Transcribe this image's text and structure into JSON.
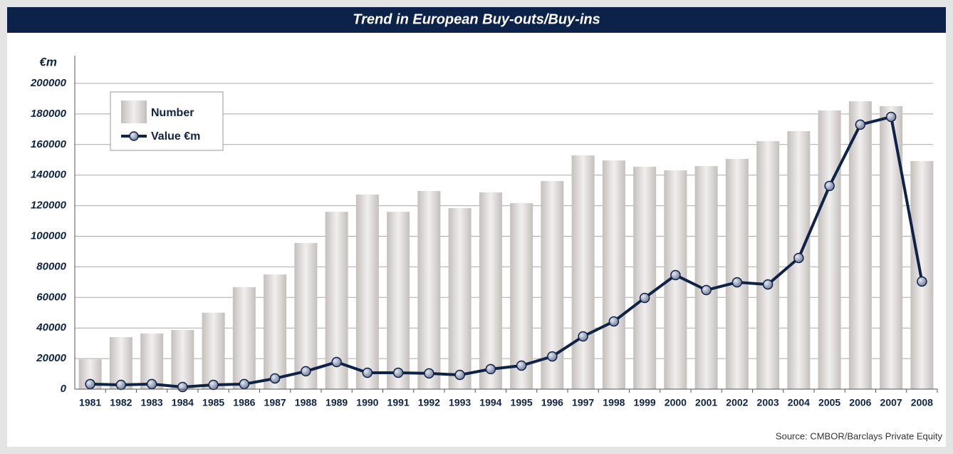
{
  "chart_data": {
    "type": "bar",
    "title": "Trend in European Buy-outs/Buy-ins",
    "y_label": "€m",
    "source": "Source: CMBOR/Barclays Private Equity",
    "categories": [
      "1981",
      "1982",
      "1983",
      "1984",
      "1985",
      "1986",
      "1987",
      "1988",
      "1989",
      "1990",
      "1991",
      "1992",
      "1993",
      "1994",
      "1995",
      "1996",
      "1997",
      "1998",
      "1999",
      "2000",
      "2001",
      "2002",
      "2003",
      "2004",
      "2005",
      "2006",
      "2007",
      "2008"
    ],
    "series": [
      {
        "name": "Number",
        "type": "bar",
        "color": "#c4bfbd",
        "values": [
          19500,
          34000,
          36400,
          38700,
          50000,
          66700,
          75000,
          95600,
          116000,
          127300,
          116000,
          129600,
          118400,
          128700,
          121700,
          136100,
          152900,
          149600,
          145500,
          143100,
          145900,
          150600,
          162200,
          168800,
          182300,
          188300,
          185100,
          149200
        ]
      },
      {
        "name": "Value €m",
        "type": "line",
        "color": "#0f2347",
        "values": [
          3300,
          2800,
          3300,
          1400,
          2800,
          3300,
          7000,
          11700,
          17700,
          10700,
          10700,
          10300,
          9300,
          13100,
          15400,
          21400,
          34500,
          44300,
          59700,
          74600,
          64800,
          69900,
          68500,
          85800,
          132900,
          173000,
          178100,
          70400
        ]
      }
    ],
    "ylim": [
      0,
      200000
    ],
    "yticks": [
      0,
      20000,
      40000,
      60000,
      80000,
      100000,
      120000,
      140000,
      160000,
      180000,
      200000
    ],
    "grid": true,
    "legend": "upper left"
  }
}
